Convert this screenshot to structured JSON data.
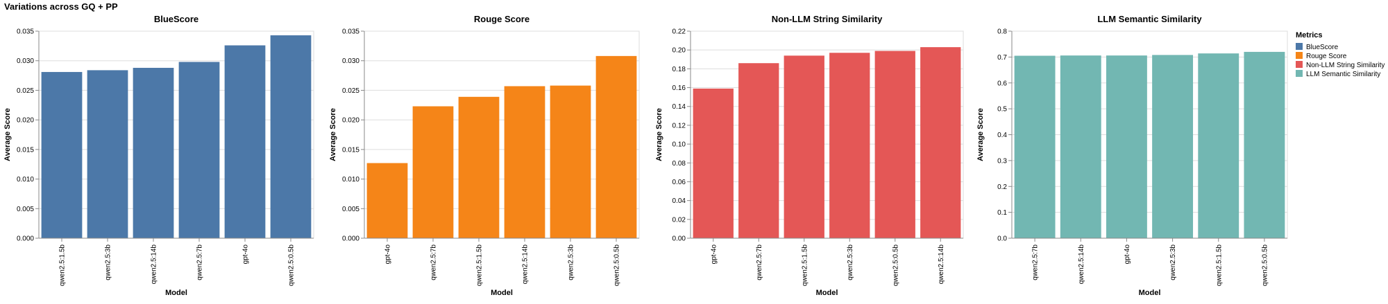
{
  "suptitle": "Variations across GQ + PP",
  "legend": {
    "title": "Metrics",
    "entries": [
      {
        "label": "BlueScore",
        "color": "#4c78a8"
      },
      {
        "label": "Rouge Score",
        "color": "#f58518"
      },
      {
        "label": "Non-LLM String Similarity",
        "color": "#e45756"
      },
      {
        "label": "LLM Semantic Similarity",
        "color": "#72b7b2"
      }
    ]
  },
  "chart_data": [
    {
      "type": "bar",
      "title": "BlueScore",
      "xlabel": "Model",
      "ylabel": "Average Score",
      "color": "#4c78a8",
      "categories": [
        "qwen2.5:1.5b",
        "qwen2.5:3b",
        "qwen2.5:14b",
        "qwen2.5:7b",
        "gpt-4o",
        "qwen2.5:0.5b"
      ],
      "values": [
        0.0281,
        0.0284,
        0.0288,
        0.0298,
        0.0326,
        0.0343
      ],
      "ylim": [
        0,
        0.035
      ],
      "yticks": [
        "0.000",
        "0.005",
        "0.010",
        "0.015",
        "0.020",
        "0.025",
        "0.030",
        "0.035"
      ],
      "grid": true
    },
    {
      "type": "bar",
      "title": "Rouge Score",
      "xlabel": "Model",
      "ylabel": "Average Score",
      "color": "#f58518",
      "categories": [
        "gpt-4o",
        "qwen2.5:7b",
        "qwen2.5:1.5b",
        "qwen2.5:14b",
        "qwen2.5:3b",
        "qwen2.5:0.5b"
      ],
      "values": [
        0.0127,
        0.0223,
        0.0239,
        0.0257,
        0.0258,
        0.0308
      ],
      "ylim": [
        0,
        0.035
      ],
      "yticks": [
        "0.000",
        "0.005",
        "0.010",
        "0.015",
        "0.020",
        "0.025",
        "0.030",
        "0.035"
      ],
      "grid": true
    },
    {
      "type": "bar",
      "title": "Non-LLM String Similarity",
      "xlabel": "Model",
      "ylabel": "Average Score",
      "color": "#e45756",
      "categories": [
        "gpt-4o",
        "qwen2.5:7b",
        "qwen2.5:1.5b",
        "qwen2.5:3b",
        "qwen2.5:0.5b",
        "qwen2.5:14b"
      ],
      "values": [
        0.159,
        0.186,
        0.194,
        0.197,
        0.199,
        0.203
      ],
      "ylim": [
        0,
        0.22
      ],
      "yticks": [
        "0.00",
        "0.02",
        "0.04",
        "0.06",
        "0.08",
        "0.10",
        "0.12",
        "0.14",
        "0.16",
        "0.18",
        "0.20",
        "0.22"
      ],
      "grid": true
    },
    {
      "type": "bar",
      "title": "LLM Semantic Similarity",
      "xlabel": "Model",
      "ylabel": "Average Score",
      "color": "#72b7b2",
      "categories": [
        "qwen2.5:7b",
        "qwen2.5:14b",
        "gpt-4o",
        "qwen2.5:3b",
        "qwen2.5:1.5b",
        "qwen2.5:0.5b"
      ],
      "values": [
        0.705,
        0.706,
        0.706,
        0.708,
        0.714,
        0.72
      ],
      "ylim": [
        0,
        0.8
      ],
      "yticks": [
        "0.0",
        "0.1",
        "0.2",
        "0.3",
        "0.4",
        "0.5",
        "0.6",
        "0.7",
        "0.8"
      ],
      "grid": true
    }
  ]
}
